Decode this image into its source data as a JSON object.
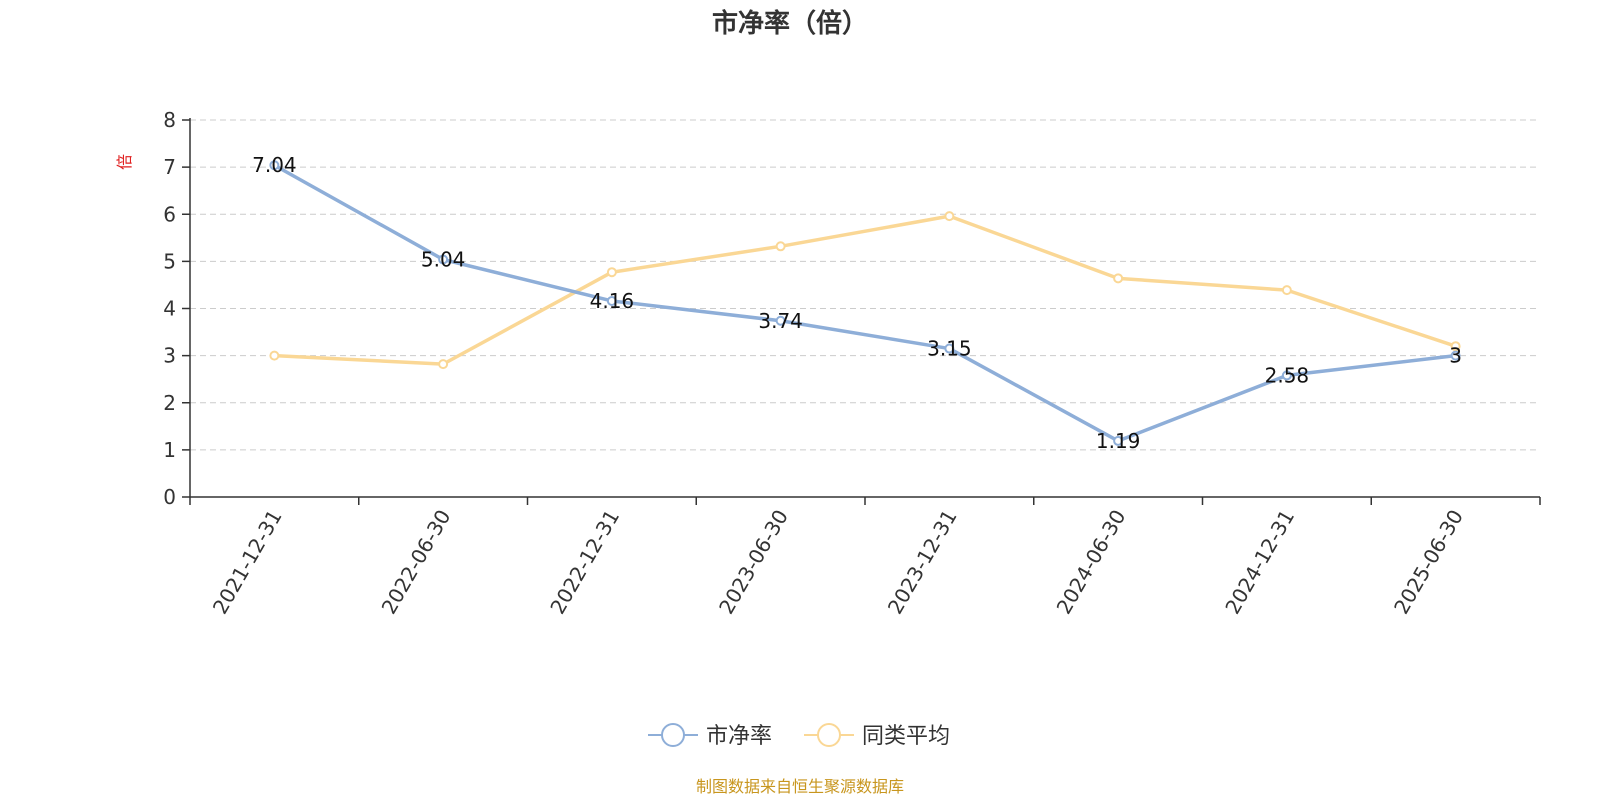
{
  "chart_data": {
    "type": "line",
    "title": "市净率（倍）",
    "y_unit": "倍",
    "categories": [
      "2021-12-31",
      "2022-06-30",
      "2022-12-31",
      "2023-06-30",
      "2023-12-31",
      "2024-06-30",
      "2024-12-31",
      "2025-06-30"
    ],
    "ylim": [
      0,
      8
    ],
    "yticks": [
      0,
      1,
      2,
      3,
      4,
      5,
      6,
      7,
      8
    ],
    "grid": true,
    "legend_position": "bottom-center",
    "series": [
      {
        "name": "市净率",
        "color": "#8eaed8",
        "values": [
          7.04,
          5.04,
          4.16,
          3.74,
          3.15,
          1.19,
          2.58,
          3
        ],
        "labels": [
          "7.04",
          "5.04",
          "4.16",
          "3.74",
          "3.15",
          "1.19",
          "2.58",
          "3"
        ]
      },
      {
        "name": "同类平均",
        "color": "#fad795",
        "values": [
          3.0,
          2.82,
          4.77,
          5.32,
          5.96,
          4.64,
          4.39,
          3.2
        ]
      }
    ],
    "source_note": "制图数据来自恒生聚源数据库"
  }
}
